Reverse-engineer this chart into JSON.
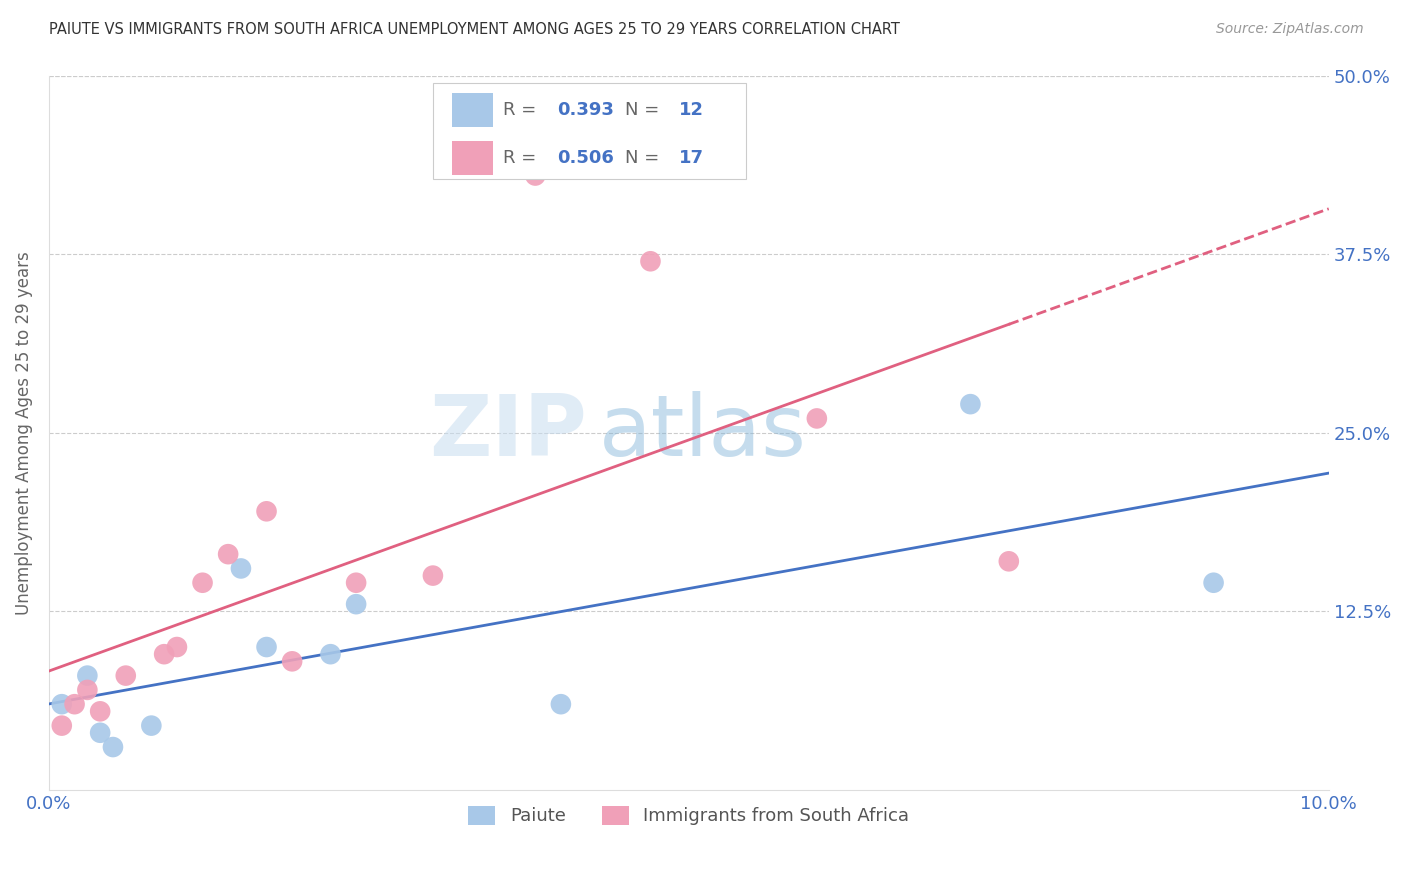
{
  "title": "PAIUTE VS IMMIGRANTS FROM SOUTH AFRICA UNEMPLOYMENT AMONG AGES 25 TO 29 YEARS CORRELATION CHART",
  "source": "Source: ZipAtlas.com",
  "ylabel": "Unemployment Among Ages 25 to 29 years",
  "xlim": [
    0.0,
    0.1
  ],
  "ylim": [
    0.0,
    0.5
  ],
  "yticks": [
    0.125,
    0.25,
    0.375,
    0.5
  ],
  "ytick_labels": [
    "12.5%",
    "25.0%",
    "37.5%",
    "50.0%"
  ],
  "watermark_zip": "ZIP",
  "watermark_atlas": "atlas",
  "paiute_color": "#a8c8e8",
  "paiute_line_color": "#4472c4",
  "sa_color": "#f0a0b8",
  "sa_line_color": "#e06080",
  "paiute_R": 0.393,
  "paiute_N": 12,
  "sa_R": 0.506,
  "sa_N": 17,
  "paiute_x": [
    0.001,
    0.003,
    0.004,
    0.005,
    0.008,
    0.015,
    0.017,
    0.022,
    0.024,
    0.04,
    0.072,
    0.091
  ],
  "paiute_y": [
    0.06,
    0.08,
    0.04,
    0.03,
    0.045,
    0.155,
    0.1,
    0.095,
    0.13,
    0.06,
    0.27,
    0.145
  ],
  "sa_x": [
    0.001,
    0.002,
    0.003,
    0.004,
    0.006,
    0.009,
    0.01,
    0.012,
    0.014,
    0.017,
    0.019,
    0.024,
    0.03,
    0.038,
    0.047,
    0.06,
    0.075
  ],
  "sa_y": [
    0.045,
    0.06,
    0.07,
    0.055,
    0.08,
    0.095,
    0.1,
    0.145,
    0.165,
    0.195,
    0.09,
    0.145,
    0.15,
    0.43,
    0.37,
    0.26,
    0.16
  ],
  "axis_color": "#4472c4",
  "grid_color": "#cccccc",
  "title_color": "#333333",
  "background_color": "#ffffff",
  "legend_paiute_label": "Paiute",
  "legend_sa_label": "Immigrants from South Africa"
}
